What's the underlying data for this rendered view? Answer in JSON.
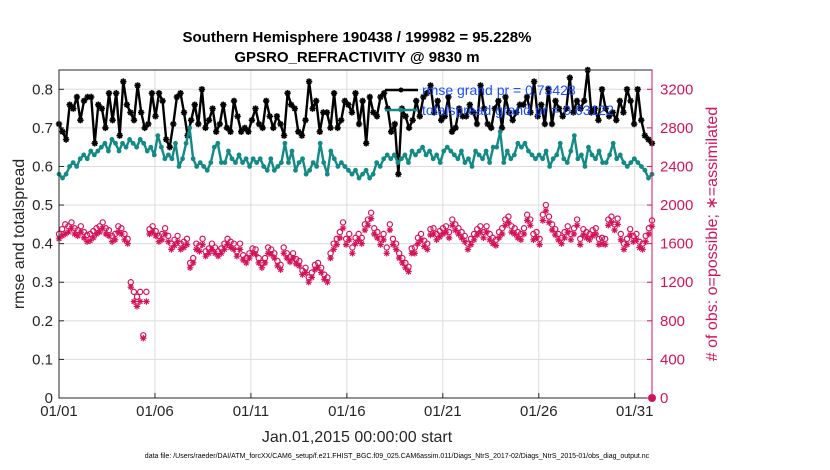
{
  "chart_data": {
    "type": "line",
    "title_line1": "Southern Hemisphere 190438 / 199982 = 95.228%",
    "title_line2": "GPSRO_REFRACTIVITY @ 9830 m",
    "xlabel": "Jan.01,2015 00:00:00 start",
    "ylabel_left": "rmse and totalspread",
    "ylabel_right": "# of obs: o=possible; ∗=assimilated",
    "xlim": [
      0,
      30.9
    ],
    "ylim_left": [
      0,
      0.85
    ],
    "ylim_right": [
      0,
      3400
    ],
    "x_ticks": [
      0,
      5,
      10,
      15,
      20,
      25,
      30
    ],
    "x_tick_labels": [
      "01/01",
      "01/06",
      "01/11",
      "01/16",
      "01/21",
      "01/26",
      "01/31"
    ],
    "y_ticks_left": [
      "0",
      "0.1",
      "0.2",
      "0.3",
      "0.4",
      "0.5",
      "0.6",
      "0.7",
      "0.8"
    ],
    "y_ticks_right": [
      "0",
      "400",
      "800",
      "1200",
      "1600",
      "2000",
      "2400",
      "2800",
      "3200"
    ],
    "legend": [
      "rmse grand pr = 0.73428",
      "totalspread grand pr = 0.63122"
    ],
    "footnote": "data file: /Users/raeder/DAI/ATM_forcXX/CAM6_setup/f.e21.FHIST_BGC.f09_025.CAM6assim.011/Diags_NtrS_2017-02/Diags_NtrS_2015-01/obs_diag_output.nc",
    "series": [
      {
        "name": "rmse",
        "axis": "left",
        "color": "#000000",
        "marker": "asterisk-filled",
        "values": [
          0.71,
          0.69,
          0.67,
          0.76,
          0.75,
          0.78,
          0.72,
          0.77,
          0.78,
          0.78,
          0.66,
          0.76,
          0.75,
          0.7,
          0.79,
          0.72,
          0.79,
          0.68,
          0.82,
          0.76,
          0.74,
          0.72,
          0.81,
          0.74,
          0.7,
          0.71,
          0.79,
          0.73,
          0.79,
          0.77,
          0.67,
          0.65,
          0.71,
          0.78,
          0.79,
          0.74,
          0.68,
          0.72,
          0.76,
          0.71,
          0.8,
          0.7,
          0.72,
          0.75,
          0.69,
          0.71,
          0.76,
          0.7,
          0.69,
          0.77,
          0.73,
          0.69,
          0.7,
          0.69,
          0.72,
          0.75,
          0.71,
          0.7,
          0.77,
          0.73,
          0.7,
          0.73,
          0.71,
          0.68,
          0.79,
          0.76,
          0.75,
          0.69,
          0.68,
          0.72,
          0.82,
          0.75,
          0.77,
          0.69,
          0.74,
          0.74,
          0.7,
          0.79,
          0.7,
          0.72,
          0.77,
          0.76,
          0.74,
          0.79,
          0.71,
          0.77,
          0.66,
          0.78,
          0.74,
          0.73,
          0.78,
          0.79,
          0.75,
          0.69,
          0.71,
          0.58,
          0.75,
          0.73,
          0.7,
          0.72,
          0.77,
          0.73,
          0.78,
          0.79,
          0.81,
          0.74,
          0.77,
          0.72,
          0.73,
          0.78,
          0.69,
          0.7,
          0.75,
          0.73,
          0.73,
          0.76,
          0.74,
          0.71,
          0.81,
          0.75,
          0.71,
          0.7,
          0.75,
          0.77,
          0.7,
          0.78,
          0.74,
          0.72,
          0.74,
          0.76,
          0.76,
          0.78,
          0.74,
          0.82,
          0.73,
          0.76,
          0.71,
          0.8,
          0.71,
          0.77,
          0.75,
          0.73,
          0.75,
          0.83,
          0.74,
          0.77,
          0.75,
          0.77,
          0.85,
          0.74,
          0.75,
          0.72,
          0.8,
          0.75,
          0.73,
          0.74,
          0.72,
          0.77,
          0.74,
          0.8,
          0.77,
          0.71,
          0.8,
          0.72,
          0.68,
          0.67,
          0.66
        ]
      },
      {
        "name": "totalspread",
        "axis": "left",
        "color": "#138a86",
        "marker": "dot",
        "values": [
          0.58,
          0.57,
          0.58,
          0.6,
          0.61,
          0.6,
          0.62,
          0.63,
          0.62,
          0.64,
          0.63,
          0.64,
          0.65,
          0.66,
          0.64,
          0.67,
          0.66,
          0.64,
          0.66,
          0.65,
          0.67,
          0.66,
          0.65,
          0.67,
          0.66,
          0.64,
          0.65,
          0.63,
          0.68,
          0.65,
          0.62,
          0.63,
          0.62,
          0.66,
          0.6,
          0.62,
          0.66,
          0.7,
          0.62,
          0.6,
          0.61,
          0.6,
          0.59,
          0.61,
          0.65,
          0.66,
          0.61,
          0.61,
          0.64,
          0.62,
          0.61,
          0.63,
          0.61,
          0.62,
          0.6,
          0.62,
          0.61,
          0.62,
          0.6,
          0.59,
          0.62,
          0.59,
          0.6,
          0.61,
          0.66,
          0.61,
          0.64,
          0.59,
          0.61,
          0.62,
          0.58,
          0.59,
          0.61,
          0.6,
          0.66,
          0.61,
          0.58,
          0.64,
          0.62,
          0.6,
          0.61,
          0.6,
          0.59,
          0.58,
          0.59,
          0.57,
          0.58,
          0.59,
          0.57,
          0.58,
          0.61,
          0.6,
          0.62,
          0.63,
          0.62,
          0.63,
          0.61,
          0.62,
          0.63,
          0.61,
          0.64,
          0.63,
          0.64,
          0.65,
          0.63,
          0.64,
          0.62,
          0.63,
          0.61,
          0.64,
          0.65,
          0.64,
          0.63,
          0.62,
          0.64,
          0.61,
          0.62,
          0.6,
          0.64,
          0.63,
          0.62,
          0.64,
          0.61,
          0.65,
          0.65,
          0.69,
          0.61,
          0.64,
          0.62,
          0.63,
          0.66,
          0.65,
          0.66,
          0.64,
          0.63,
          0.62,
          0.63,
          0.62,
          0.64,
          0.6,
          0.62,
          0.63,
          0.66,
          0.62,
          0.61,
          0.64,
          0.68,
          0.62,
          0.63,
          0.6,
          0.65,
          0.63,
          0.62,
          0.64,
          0.61,
          0.61,
          0.63,
          0.66,
          0.62,
          0.63,
          0.61,
          0.6,
          0.61,
          0.62,
          0.61,
          0.6,
          0.59,
          0.57,
          0.58
        ]
      },
      {
        "name": "possible",
        "axis": "right",
        "color": "#d4145a",
        "marker": "circle",
        "values": [
          1700,
          1750,
          1800,
          1780,
          1820,
          1760,
          1740,
          1780,
          1720,
          1690,
          1700,
          1730,
          1760,
          1780,
          1820,
          1760,
          1740,
          1680,
          1700,
          1780,
          1760,
          1700,
          1650,
          1200,
          1100,
          1050,
          1100,
          650,
          1100,
          1750,
          1780,
          1730,
          1680,
          1700,
          1760,
          1680,
          1600,
          1640,
          1680,
          1600,
          1620,
          1650,
          1400,
          1450,
          1600,
          1580,
          1650,
          1520,
          1550,
          1600,
          1560,
          1520,
          1550,
          1600,
          1650,
          1620,
          1600,
          1520,
          1600,
          1480,
          1450,
          1500,
          1550,
          1540,
          1450,
          1400,
          1450,
          1560,
          1540,
          1500,
          1420,
          1380,
          1560,
          1500,
          1460,
          1500,
          1440,
          1420,
          1320,
          1350,
          1250,
          1300,
          1380,
          1400,
          1350,
          1280,
          1250,
          1500,
          1600,
          1650,
          1720,
          1820,
          1650,
          1700,
          1560,
          1660,
          1700,
          1660,
          1800,
          1850,
          1920,
          1760,
          1720,
          1650,
          1700,
          1560,
          1800,
          1650,
          1600,
          1500,
          1450,
          1400,
          1360,
          1550,
          1560,
          1660,
          1700,
          1630,
          1600,
          1750,
          1760,
          1700,
          1730,
          1760,
          1780,
          1720,
          1850,
          1800,
          1760,
          1720,
          1680,
          1600,
          1650,
          1700,
          1750,
          1780,
          1720,
          1780,
          1700,
          1660,
          1640,
          1720,
          1760,
          1850,
          1880,
          1780,
          1760,
          1720,
          1700,
          1760,
          1900,
          1850,
          1700,
          1720,
          1650,
          1900,
          2000,
          1880,
          1800,
          1750,
          1700,
          1660,
          1720,
          1780,
          1700,
          1760,
          1850,
          1650,
          1750,
          1720,
          1700,
          1740,
          1760,
          1650,
          1660,
          1650,
          1850,
          1880,
          1800,
          1860,
          1700,
          1600,
          1650,
          1750,
          1680,
          1700,
          1620,
          1600,
          1680,
          1760,
          1840
        ]
      },
      {
        "name": "assimilated",
        "axis": "right",
        "color": "#d4145a",
        "marker": "asterisk",
        "values": [
          1650,
          1680,
          1700,
          1720,
          1760,
          1700,
          1680,
          1720,
          1660,
          1620,
          1630,
          1660,
          1700,
          1720,
          1760,
          1700,
          1680,
          1620,
          1640,
          1720,
          1700,
          1640,
          1600,
          1150,
          1000,
          950,
          1000,
          620,
          1000,
          1700,
          1720,
          1680,
          1620,
          1640,
          1700,
          1620,
          1540,
          1580,
          1620,
          1540,
          1560,
          1590,
          1350,
          1400,
          1540,
          1520,
          1590,
          1470,
          1500,
          1540,
          1500,
          1470,
          1500,
          1540,
          1590,
          1560,
          1540,
          1470,
          1540,
          1430,
          1400,
          1450,
          1500,
          1490,
          1400,
          1350,
          1400,
          1500,
          1490,
          1450,
          1370,
          1330,
          1500,
          1450,
          1410,
          1450,
          1390,
          1370,
          1280,
          1300,
          1200,
          1250,
          1330,
          1350,
          1300,
          1230,
          1200,
          1450,
          1540,
          1590,
          1660,
          1760,
          1590,
          1640,
          1500,
          1600,
          1640,
          1600,
          1740,
          1790,
          1860,
          1700,
          1660,
          1590,
          1640,
          1500,
          1740,
          1590,
          1540,
          1450,
          1400,
          1350,
          1310,
          1500,
          1500,
          1600,
          1640,
          1570,
          1540,
          1690,
          1700,
          1640,
          1670,
          1700,
          1720,
          1660,
          1790,
          1740,
          1700,
          1660,
          1620,
          1540,
          1590,
          1640,
          1690,
          1720,
          1660,
          1720,
          1640,
          1600,
          1580,
          1660,
          1700,
          1790,
          1820,
          1720,
          1700,
          1660,
          1640,
          1700,
          1840,
          1790,
          1640,
          1660,
          1590,
          1840,
          1940,
          1820,
          1740,
          1690,
          1640,
          1600,
          1660,
          1720,
          1640,
          1700,
          1790,
          1590,
          1690,
          1660,
          1640,
          1680,
          1700,
          1590,
          1600,
          1590,
          1790,
          1820,
          1740,
          1800,
          1640,
          1540,
          1590,
          1690,
          1620,
          1640,
          1560,
          1540,
          1620,
          1700,
          1780
        ]
      }
    ]
  }
}
